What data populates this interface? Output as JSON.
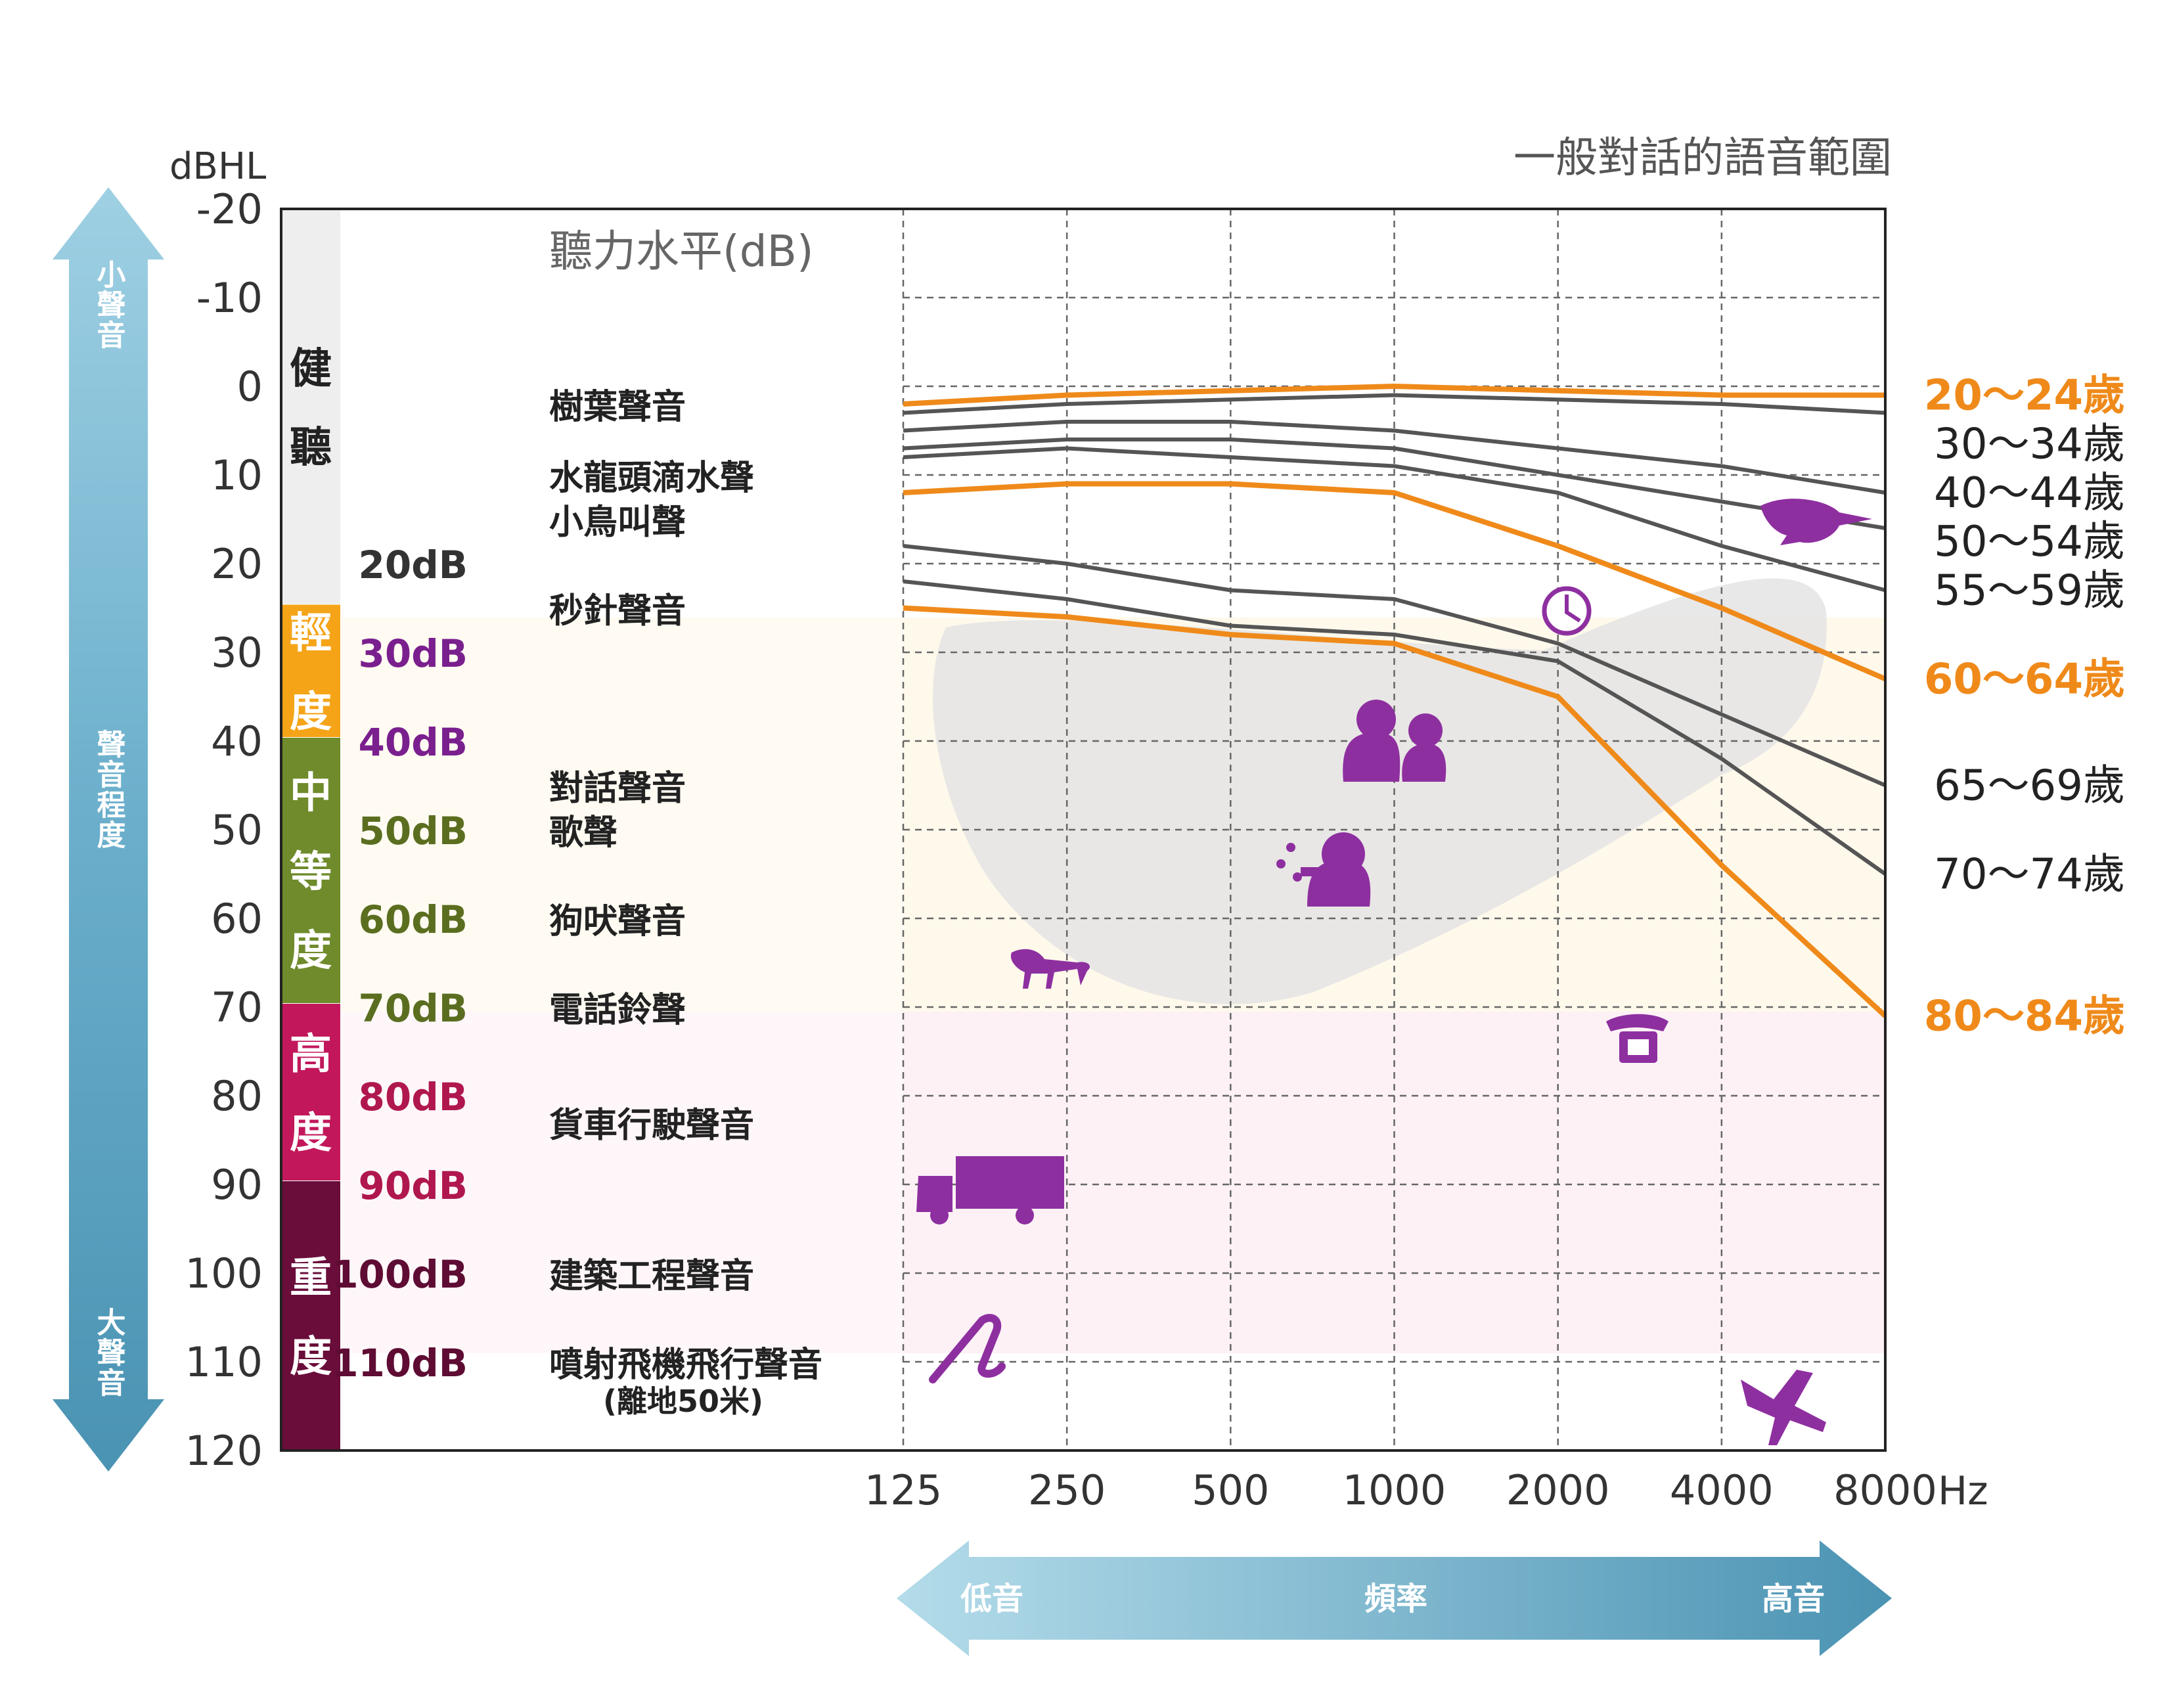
{
  "chart_data": {
    "type": "line",
    "title": "一般對話的語音範圍",
    "ylabel": "dBHL",
    "y_axis_note": "聽力水平(dB)",
    "xlabel": "頻率",
    "x_unit": "Hz",
    "ylim": [
      -20,
      120
    ],
    "y_inverted": true,
    "y_ticks": [
      "-20",
      "-10",
      "0",
      "10",
      "20",
      "30",
      "40",
      "50",
      "60",
      "70",
      "80",
      "90",
      "100",
      "110",
      "120"
    ],
    "x_scale": "log2",
    "x": [
      125,
      250,
      500,
      1000,
      2000,
      4000,
      8000
    ],
    "x_tick_labels": [
      "125",
      "250",
      "500",
      "1000",
      "2000",
      "4000",
      "8000"
    ],
    "grid": true,
    "series": [
      {
        "name": "20〜24歲",
        "highlight": true,
        "values": [
          2,
          1,
          0.5,
          0,
          0.5,
          1,
          1
        ]
      },
      {
        "name": "30〜34歲",
        "highlight": false,
        "values": [
          3,
          2,
          1.5,
          1,
          1.5,
          2,
          3
        ]
      },
      {
        "name": "40〜44歲",
        "highlight": false,
        "values": [
          5,
          4,
          4,
          5,
          7,
          9,
          12
        ]
      },
      {
        "name": "50〜54歲",
        "highlight": false,
        "values": [
          7,
          6,
          6,
          7,
          10,
          13,
          16
        ]
      },
      {
        "name": "55〜59歲",
        "highlight": false,
        "values": [
          8,
          7,
          8,
          9,
          12,
          18,
          23
        ]
      },
      {
        "name": "60〜64歲",
        "highlight": true,
        "values": [
          12,
          11,
          11,
          12,
          18,
          25,
          33
        ]
      },
      {
        "name": "65〜69歲",
        "highlight": false,
        "values": [
          18,
          20,
          23,
          24,
          29,
          37,
          45
        ]
      },
      {
        "name": "70〜74歲",
        "highlight": false,
        "values": [
          22,
          24,
          27,
          28,
          31,
          42,
          55
        ]
      },
      {
        "name": "80〜84歲",
        "highlight": true,
        "values": [
          25,
          26,
          28,
          29,
          35,
          54,
          71
        ]
      }
    ],
    "colors": {
      "highlight": "#ef8a1a",
      "normal": "#555555",
      "icon": "#8e2fa0",
      "axis_arrow": "#6aaecb"
    }
  },
  "levels": [
    {
      "name": "健聽",
      "color": "#eeeeee",
      "text_color": "#222222",
      "from": -20,
      "to": 25
    },
    {
      "name": "輕度",
      "color": "#f5a418",
      "text_color": "#ffffff",
      "from": 25,
      "to": 40
    },
    {
      "name": "中等度",
      "color": "#6f8b2c",
      "text_color": "#ffffff",
      "from": 40,
      "to": 70
    },
    {
      "name": "高度",
      "color": "#c2185b",
      "text_color": "#ffffff",
      "from": 70,
      "to": 90
    },
    {
      "name": "重度",
      "color": "#6a0d3a",
      "text_color": "#ffffff",
      "from": 90,
      "to": 120
    }
  ],
  "db_labels": [
    {
      "text": "20dB",
      "db": 20,
      "color": "#333333"
    },
    {
      "text": "30dB",
      "db": 30,
      "color": "#7a1f8e"
    },
    {
      "text": "40dB",
      "db": 40,
      "color": "#7a1f8e"
    },
    {
      "text": "50dB",
      "db": 50,
      "color": "#5b6e20"
    },
    {
      "text": "60dB",
      "db": 60,
      "color": "#5b6e20"
    },
    {
      "text": "70dB",
      "db": 70,
      "color": "#5b6e20"
    },
    {
      "text": "80dB",
      "db": 80,
      "color": "#b0174f"
    },
    {
      "text": "90dB",
      "db": 90,
      "color": "#b0174f"
    },
    {
      "text": "100dB",
      "db": 100,
      "color": "#5e0c33"
    },
    {
      "text": "110dB",
      "db": 110,
      "color": "#5e0c33"
    }
  ],
  "sound_examples": [
    {
      "text": "樹葉聲音",
      "db": 2
    },
    {
      "text": "水龍頭滴水聲",
      "db": 10
    },
    {
      "text": "小鳥叫聲",
      "db": 15
    },
    {
      "text": "秒針聲音",
      "db": 25
    },
    {
      "text": "對話聲音",
      "db": 45
    },
    {
      "text": "歌聲",
      "db": 50
    },
    {
      "text": "狗吠聲音",
      "db": 60
    },
    {
      "text": "電話鈴聲",
      "db": 70
    },
    {
      "text": "貨車行駛聲音",
      "db": 83
    },
    {
      "text": "建築工程聲音",
      "db": 100
    },
    {
      "text": "噴射飛機飛行聲音",
      "db": 110
    },
    {
      "text": "(離地50米)",
      "db": 114
    }
  ],
  "icons": [
    {
      "name": "bird-icon",
      "freq": 4500,
      "db": 15
    },
    {
      "name": "clock-icon",
      "freq": 2000,
      "db": 25
    },
    {
      "name": "conversation-icon",
      "freq": 1000,
      "db": 45
    },
    {
      "name": "singer-icon",
      "freq": 700,
      "db": 57
    },
    {
      "name": "dog-icon",
      "freq": 200,
      "db": 67
    },
    {
      "name": "telephone-icon",
      "freq": 2500,
      "db": 77
    },
    {
      "name": "truck-icon",
      "freq": 180,
      "db": 90
    },
    {
      "name": "construction-icon",
      "freq": 170,
      "db": 109
    },
    {
      "name": "airplane-icon",
      "freq": 4800,
      "db": 117
    }
  ],
  "left_arrow": {
    "top": "小聲音",
    "middle": "聲音程度",
    "bottom": "大聲音"
  },
  "bottom_arrow": {
    "left": "低音",
    "middle": "頻率",
    "right": "高音"
  }
}
